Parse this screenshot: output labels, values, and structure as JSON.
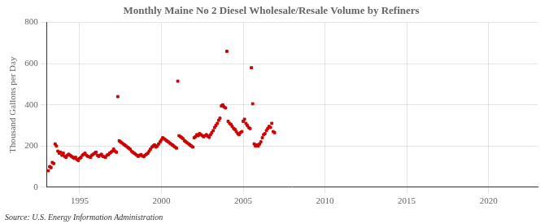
{
  "chart_data": {
    "type": "scatter",
    "title": "Monthly Maine No 2 Diesel Wholesale/Resale Volume by Refiners",
    "ylabel": "Thousand Gallons per Day",
    "annotations": [
      "Source: U.S. Energy Information Administration"
    ],
    "color": "#cc0000",
    "marker": "square",
    "grid": true,
    "xlim": [
      1993.0,
      2023.0
    ],
    "ylim": [
      0,
      800
    ],
    "xticks": [
      1995,
      2000,
      2005,
      2010,
      2015,
      2020
    ],
    "yticks": [
      0,
      200,
      400,
      600,
      800
    ],
    "x": [
      1993.08,
      1993.17,
      1993.25,
      1993.33,
      1993.42,
      1993.5,
      1993.58,
      1993.67,
      1993.75,
      1993.83,
      1993.92,
      1994.0,
      1994.08,
      1994.17,
      1994.25,
      1994.33,
      1994.42,
      1994.5,
      1994.58,
      1994.67,
      1994.75,
      1994.83,
      1994.92,
      1995.0,
      1995.08,
      1995.17,
      1995.25,
      1995.33,
      1995.42,
      1995.5,
      1995.58,
      1995.67,
      1995.75,
      1995.83,
      1995.92,
      1996.0,
      1996.08,
      1996.17,
      1996.25,
      1996.33,
      1996.42,
      1996.5,
      1996.58,
      1996.67,
      1996.75,
      1996.83,
      1996.92,
      1997.0,
      1997.08,
      1997.17,
      1997.25,
      1997.33,
      1997.42,
      1997.5,
      1997.58,
      1997.67,
      1997.75,
      1997.83,
      1997.92,
      1998.0,
      1998.08,
      1998.17,
      1998.25,
      1998.33,
      1998.42,
      1998.5,
      1998.58,
      1998.67,
      1998.75,
      1998.83,
      1998.92,
      1999.0,
      1999.08,
      1999.17,
      1999.25,
      1999.33,
      1999.42,
      1999.5,
      1999.58,
      1999.67,
      1999.75,
      1999.83,
      1999.92,
      2000.0,
      2000.08,
      2000.17,
      2000.25,
      2000.33,
      2000.42,
      2000.5,
      2000.58,
      2000.67,
      2000.75,
      2000.83,
      2000.92,
      2001.0,
      2001.08,
      2001.17,
      2001.25,
      2001.33,
      2001.42,
      2001.5,
      2001.58,
      2001.67,
      2001.75,
      2001.83,
      2001.92,
      2002.0,
      2002.08,
      2002.17,
      2002.25,
      2002.33,
      2002.42,
      2002.5,
      2002.58,
      2002.67,
      2002.75,
      2002.83,
      2002.92,
      2003.0,
      2003.08,
      2003.17,
      2003.25,
      2003.33,
      2003.42,
      2003.5,
      2003.58,
      2003.67,
      2003.75,
      2003.83,
      2003.92,
      2004.0,
      2004.08,
      2004.17,
      2004.25,
      2004.33,
      2004.42,
      2004.5,
      2004.58,
      2004.67,
      2004.75,
      2004.83,
      2004.92,
      2005.0,
      2005.08,
      2005.17,
      2005.25,
      2005.33,
      2005.42,
      2005.5,
      2005.58,
      2005.67,
      2005.75,
      2005.83,
      2005.92,
      2006.0,
      2006.08,
      2006.17,
      2006.25,
      2006.33,
      2006.42,
      2006.5,
      2006.58,
      2006.67,
      2006.75,
      2006.83,
      2006.92
    ],
    "values": [
      80,
      100,
      95,
      120,
      115,
      210,
      200,
      175,
      165,
      170,
      155,
      165,
      150,
      145,
      155,
      160,
      155,
      150,
      145,
      140,
      145,
      135,
      130,
      140,
      145,
      155,
      160,
      165,
      155,
      150,
      148,
      145,
      155,
      160,
      165,
      170,
      155,
      150,
      155,
      160,
      150,
      148,
      145,
      155,
      158,
      165,
      170,
      175,
      185,
      175,
      170,
      440,
      225,
      220,
      215,
      210,
      205,
      200,
      195,
      190,
      185,
      175,
      170,
      165,
      160,
      155,
      150,
      155,
      158,
      152,
      148,
      155,
      160,
      165,
      175,
      185,
      195,
      200,
      205,
      195,
      200,
      210,
      220,
      230,
      240,
      235,
      230,
      225,
      220,
      215,
      210,
      205,
      200,
      195,
      190,
      515,
      250,
      245,
      240,
      235,
      225,
      220,
      215,
      210,
      205,
      200,
      195,
      240,
      245,
      255,
      250,
      260,
      255,
      250,
      245,
      250,
      255,
      248,
      242,
      255,
      265,
      275,
      290,
      300,
      310,
      325,
      335,
      395,
      400,
      390,
      385,
      660,
      320,
      310,
      305,
      295,
      285,
      280,
      270,
      260,
      255,
      265,
      270,
      320,
      330,
      310,
      300,
      290,
      285,
      580,
      405,
      210,
      200,
      205,
      200,
      210,
      220,
      240,
      255,
      260,
      275,
      285,
      295,
      290,
      310,
      270,
      265
    ]
  }
}
